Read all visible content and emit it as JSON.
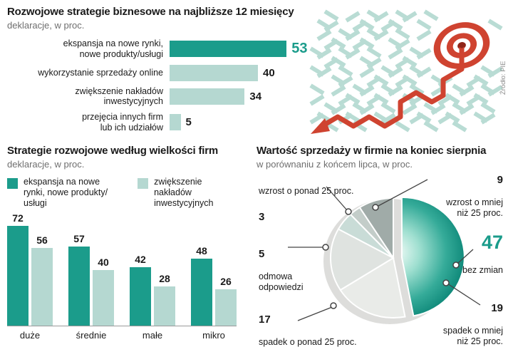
{
  "source_label": "Źródło: PIE",
  "colors": {
    "teal": "#1b9c8b",
    "light_teal": "#b5d8d1",
    "red": "#cf4330",
    "text": "#1a1a1a",
    "muted": "#6e6e6e"
  },
  "chart_data": [
    {
      "type": "bar",
      "orientation": "horizontal",
      "title": "Rozwojowe strategie biznesowe na najbliższe 12 miesięcy",
      "subtitle": "deklaracje, w proc.",
      "categories": [
        "ekspansja na nowe rynki,\nnowe produkty/usługi",
        "wykorzystanie sprzedaży online",
        "zwiększenie nakładów\ninwestycyjnych",
        "przejęcia innych firm\nlub ich udziałów"
      ],
      "values": [
        53,
        40,
        34,
        5
      ],
      "highlight_index": 0,
      "xlim": [
        0,
        60
      ],
      "grid": false
    },
    {
      "type": "bar",
      "orientation": "vertical",
      "title": "Strategie rozwojowe według wielkości firm",
      "subtitle": "deklaracje, w proc.",
      "categories": [
        "duże",
        "średnie",
        "małe",
        "mikro"
      ],
      "series": [
        {
          "name": "ekspansja na nowe\nrynki, nowe produkty/\nusługi",
          "values": [
            72,
            57,
            42,
            48
          ]
        },
        {
          "name": "zwiększenie\nnakładów\ninwestycyjnych",
          "values": [
            56,
            40,
            28,
            26
          ]
        }
      ],
      "ylim": [
        0,
        80
      ],
      "legend_position": "top",
      "grid": false
    },
    {
      "type": "pie",
      "title": "Wartość sprzedaży w firmie na koniec sierpnia",
      "subtitle": "w porównaniu z końcem lipca, w proc.",
      "slices": [
        {
          "label": "bez zmian",
          "value": 47,
          "color": "teal-gradient",
          "highlight": true
        },
        {
          "label": "spadek o mniej\nniż 25 proc.",
          "value": 19,
          "color": "#e9ebe8"
        },
        {
          "label": "spadek o ponad 25 proc.",
          "value": 17,
          "color": "#dfe3e0"
        },
        {
          "label": "odmowa\nodpowiedzi",
          "value": 5,
          "color": "#c9dcd7"
        },
        {
          "label": "wzrost o ponad 25 proc.",
          "value": 3,
          "color": "#c3cdc9"
        },
        {
          "label": "wzrost o mniej\nniż 25 proc.",
          "value": 9,
          "color": "#a0aba8"
        }
      ]
    }
  ]
}
